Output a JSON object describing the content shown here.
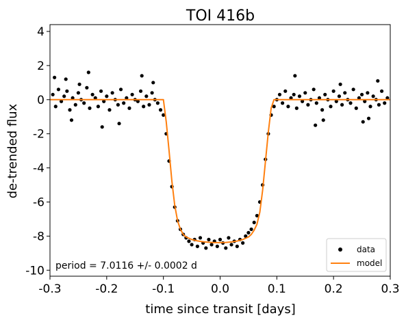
{
  "chart_data": {
    "type": "scatter",
    "title": "TOI 416b",
    "xlabel": "time since transit [days]",
    "ylabel": "de-trended flux",
    "xlim": [
      -0.3,
      0.3
    ],
    "ylim": [
      -10.35,
      4.4
    ],
    "x_ticks": [
      -0.3,
      -0.2,
      -0.1,
      0.0,
      0.1,
      0.2,
      0.3
    ],
    "x_tick_labels": [
      "-0.3",
      "-0.2",
      "-0.1",
      "0.0",
      "0.1",
      "0.2",
      "0.3"
    ],
    "y_ticks": [
      4,
      2,
      0,
      -2,
      -4,
      -6,
      -8,
      -10
    ],
    "y_tick_labels": [
      "4",
      "2",
      "0",
      "-2",
      "-4",
      "-6",
      "-8",
      "-10"
    ],
    "grid": false,
    "legend": {
      "position": "bottom-right",
      "entries": [
        "data",
        "model"
      ]
    },
    "annotation": "period = 7.0116 +/- 0.0002 d",
    "series": [
      {
        "name": "data",
        "kind": "scatter",
        "color": "#000000",
        "description_note": "",
        "x": [
          -0.295,
          -0.29,
          -0.285,
          -0.28,
          -0.275,
          -0.27,
          -0.265,
          -0.26,
          -0.255,
          -0.25,
          -0.245,
          -0.24,
          -0.235,
          -0.23,
          -0.225,
          -0.22,
          -0.215,
          -0.21,
          -0.205,
          -0.2,
          -0.195,
          -0.19,
          -0.185,
          -0.18,
          -0.175,
          -0.17,
          -0.165,
          -0.16,
          -0.155,
          -0.15,
          -0.145,
          -0.14,
          -0.135,
          -0.13,
          -0.125,
          -0.12,
          -0.115,
          -0.11,
          -0.105,
          -0.1,
          -0.095,
          -0.09,
          -0.085,
          -0.08,
          -0.075,
          -0.07,
          -0.065,
          -0.06,
          -0.055,
          -0.05,
          -0.045,
          -0.04,
          -0.035,
          -0.03,
          -0.025,
          -0.02,
          -0.015,
          -0.01,
          -0.005,
          0.0,
          0.005,
          0.01,
          0.015,
          0.02,
          0.025,
          0.03,
          0.035,
          0.04,
          0.045,
          0.05,
          0.055,
          0.06,
          0.065,
          0.07,
          0.075,
          0.08,
          0.085,
          0.09,
          0.095,
          0.1,
          0.105,
          0.11,
          0.115,
          0.12,
          0.125,
          0.13,
          0.135,
          0.14,
          0.145,
          0.15,
          0.155,
          0.16,
          0.165,
          0.17,
          0.175,
          0.18,
          0.185,
          0.19,
          0.195,
          0.2,
          0.205,
          0.21,
          0.215,
          0.22,
          0.225,
          0.23,
          0.235,
          0.24,
          0.245,
          0.25,
          0.255,
          0.26,
          0.265,
          0.27,
          0.275,
          0.28,
          0.285,
          0.29,
          0.295,
          -0.292,
          -0.262,
          -0.232,
          -0.248,
          -0.138,
          -0.178,
          -0.208,
          -0.118,
          0.168,
          0.182,
          0.132,
          0.252,
          0.278,
          -0.272,
          0.212,
          0.262
        ],
        "y": [
          0.3,
          -0.4,
          0.6,
          -0.1,
          0.2,
          0.5,
          -0.6,
          0.1,
          -0.3,
          0.4,
          0.0,
          -0.2,
          0.7,
          -0.5,
          0.3,
          0.1,
          -0.4,
          0.5,
          -0.1,
          0.2,
          -0.6,
          0.4,
          0.0,
          -0.3,
          0.6,
          -0.2,
          0.1,
          -0.5,
          0.3,
          0.0,
          -0.1,
          0.5,
          -0.4,
          0.2,
          -0.3,
          0.4,
          0.0,
          -0.2,
          -0.6,
          -0.9,
          -2.0,
          -3.6,
          -5.1,
          -6.3,
          -7.1,
          -7.6,
          -7.9,
          -8.1,
          -8.3,
          -8.5,
          -8.2,
          -8.6,
          -8.1,
          -8.4,
          -8.7,
          -8.2,
          -8.5,
          -8.3,
          -8.6,
          -8.2,
          -8.4,
          -8.7,
          -8.1,
          -8.5,
          -8.3,
          -8.6,
          -8.2,
          -8.4,
          -8.0,
          -7.8,
          -7.6,
          -7.2,
          -6.8,
          -6.0,
          -5.0,
          -3.5,
          -2.0,
          -0.9,
          -0.4,
          0.0,
          0.3,
          -0.2,
          0.5,
          -0.4,
          0.1,
          0.3,
          -0.5,
          0.2,
          -0.1,
          0.4,
          -0.3,
          0.0,
          0.6,
          -0.2,
          0.1,
          -0.6,
          0.3,
          0.0,
          -0.4,
          0.5,
          -0.1,
          0.2,
          -0.3,
          0.4,
          0.0,
          -0.2,
          0.6,
          -0.5,
          0.1,
          0.3,
          -0.1,
          0.4,
          -0.4,
          0.2,
          0.0,
          -0.3,
          0.5,
          -0.2,
          0.1,
          1.3,
          -1.2,
          1.6,
          0.9,
          1.4,
          -1.4,
          -1.6,
          1.0,
          -1.5,
          -1.2,
          1.4,
          -1.3,
          1.1,
          1.2,
          0.9,
          -1.1
        ],
        "note": ""
      },
      {
        "name": "model",
        "kind": "line",
        "color": "#ff7f0e",
        "x": [
          -0.3,
          -0.105,
          -0.1,
          -0.095,
          -0.09,
          -0.085,
          -0.08,
          -0.075,
          -0.07,
          -0.065,
          -0.06,
          -0.05,
          -0.04,
          -0.03,
          -0.02,
          -0.01,
          0.0,
          0.01,
          0.02,
          0.03,
          0.04,
          0.05,
          0.055,
          0.06,
          0.065,
          0.07,
          0.075,
          0.08,
          0.085,
          0.09,
          0.095,
          0.3
        ],
        "y": [
          0,
          0,
          0,
          -1.3,
          -3.0,
          -4.8,
          -6.2,
          -7.1,
          -7.6,
          -7.9,
          -8.05,
          -8.2,
          -8.28,
          -8.33,
          -8.36,
          -8.38,
          -8.38,
          -8.37,
          -8.34,
          -8.29,
          -8.2,
          -8.05,
          -7.9,
          -7.65,
          -7.3,
          -6.6,
          -5.3,
          -3.6,
          -1.9,
          -0.5,
          0,
          0
        ]
      }
    ]
  }
}
